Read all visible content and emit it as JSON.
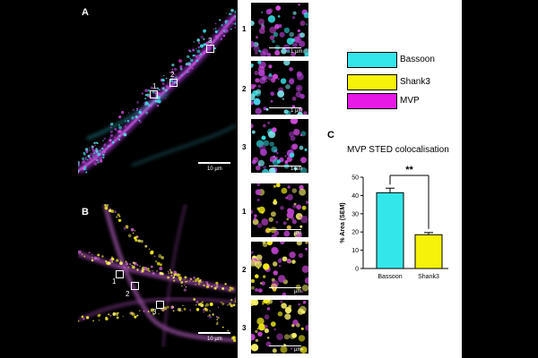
{
  "panels": {
    "a": {
      "label": "A",
      "boxes": [
        "1",
        "2",
        "3"
      ],
      "scale_text": "10 µm"
    },
    "b": {
      "label": "B",
      "boxes": [
        "1",
        "2",
        "3"
      ],
      "scale_text": "10 µm"
    },
    "c": {
      "label": "C"
    }
  },
  "insets_a": [
    {
      "num": "1",
      "scale_text": "1 µm"
    },
    {
      "num": "2",
      "scale_text": "1 µm"
    },
    {
      "num": "3",
      "scale_text": "1 µm"
    }
  ],
  "insets_b": [
    {
      "num": "1",
      "scale_text": "µm"
    },
    {
      "num": "2",
      "scale_text": "µm"
    },
    {
      "num": "3",
      "scale_text": "µm"
    }
  ],
  "legend": [
    {
      "label": "Bassoon",
      "color": "#33e6ea"
    },
    {
      "label": "Shank3",
      "color": "#f7f20a"
    },
    {
      "label": "MVP",
      "color": "#e619e6"
    }
  ],
  "chart_data": {
    "type": "bar",
    "title": "MVP STED colocalisation",
    "ylabel": "% Area (SEM)",
    "xlabel": "",
    "categories": [
      "Bassoon",
      "Shank3"
    ],
    "values": [
      41.5,
      18.5
    ],
    "errors": [
      2.5,
      1.2
    ],
    "colors": [
      "#33e6ea",
      "#f7f20a"
    ],
    "ylim": [
      0,
      50
    ],
    "yticks": [
      0,
      10,
      20,
      30,
      40,
      50
    ],
    "significance": "**"
  }
}
